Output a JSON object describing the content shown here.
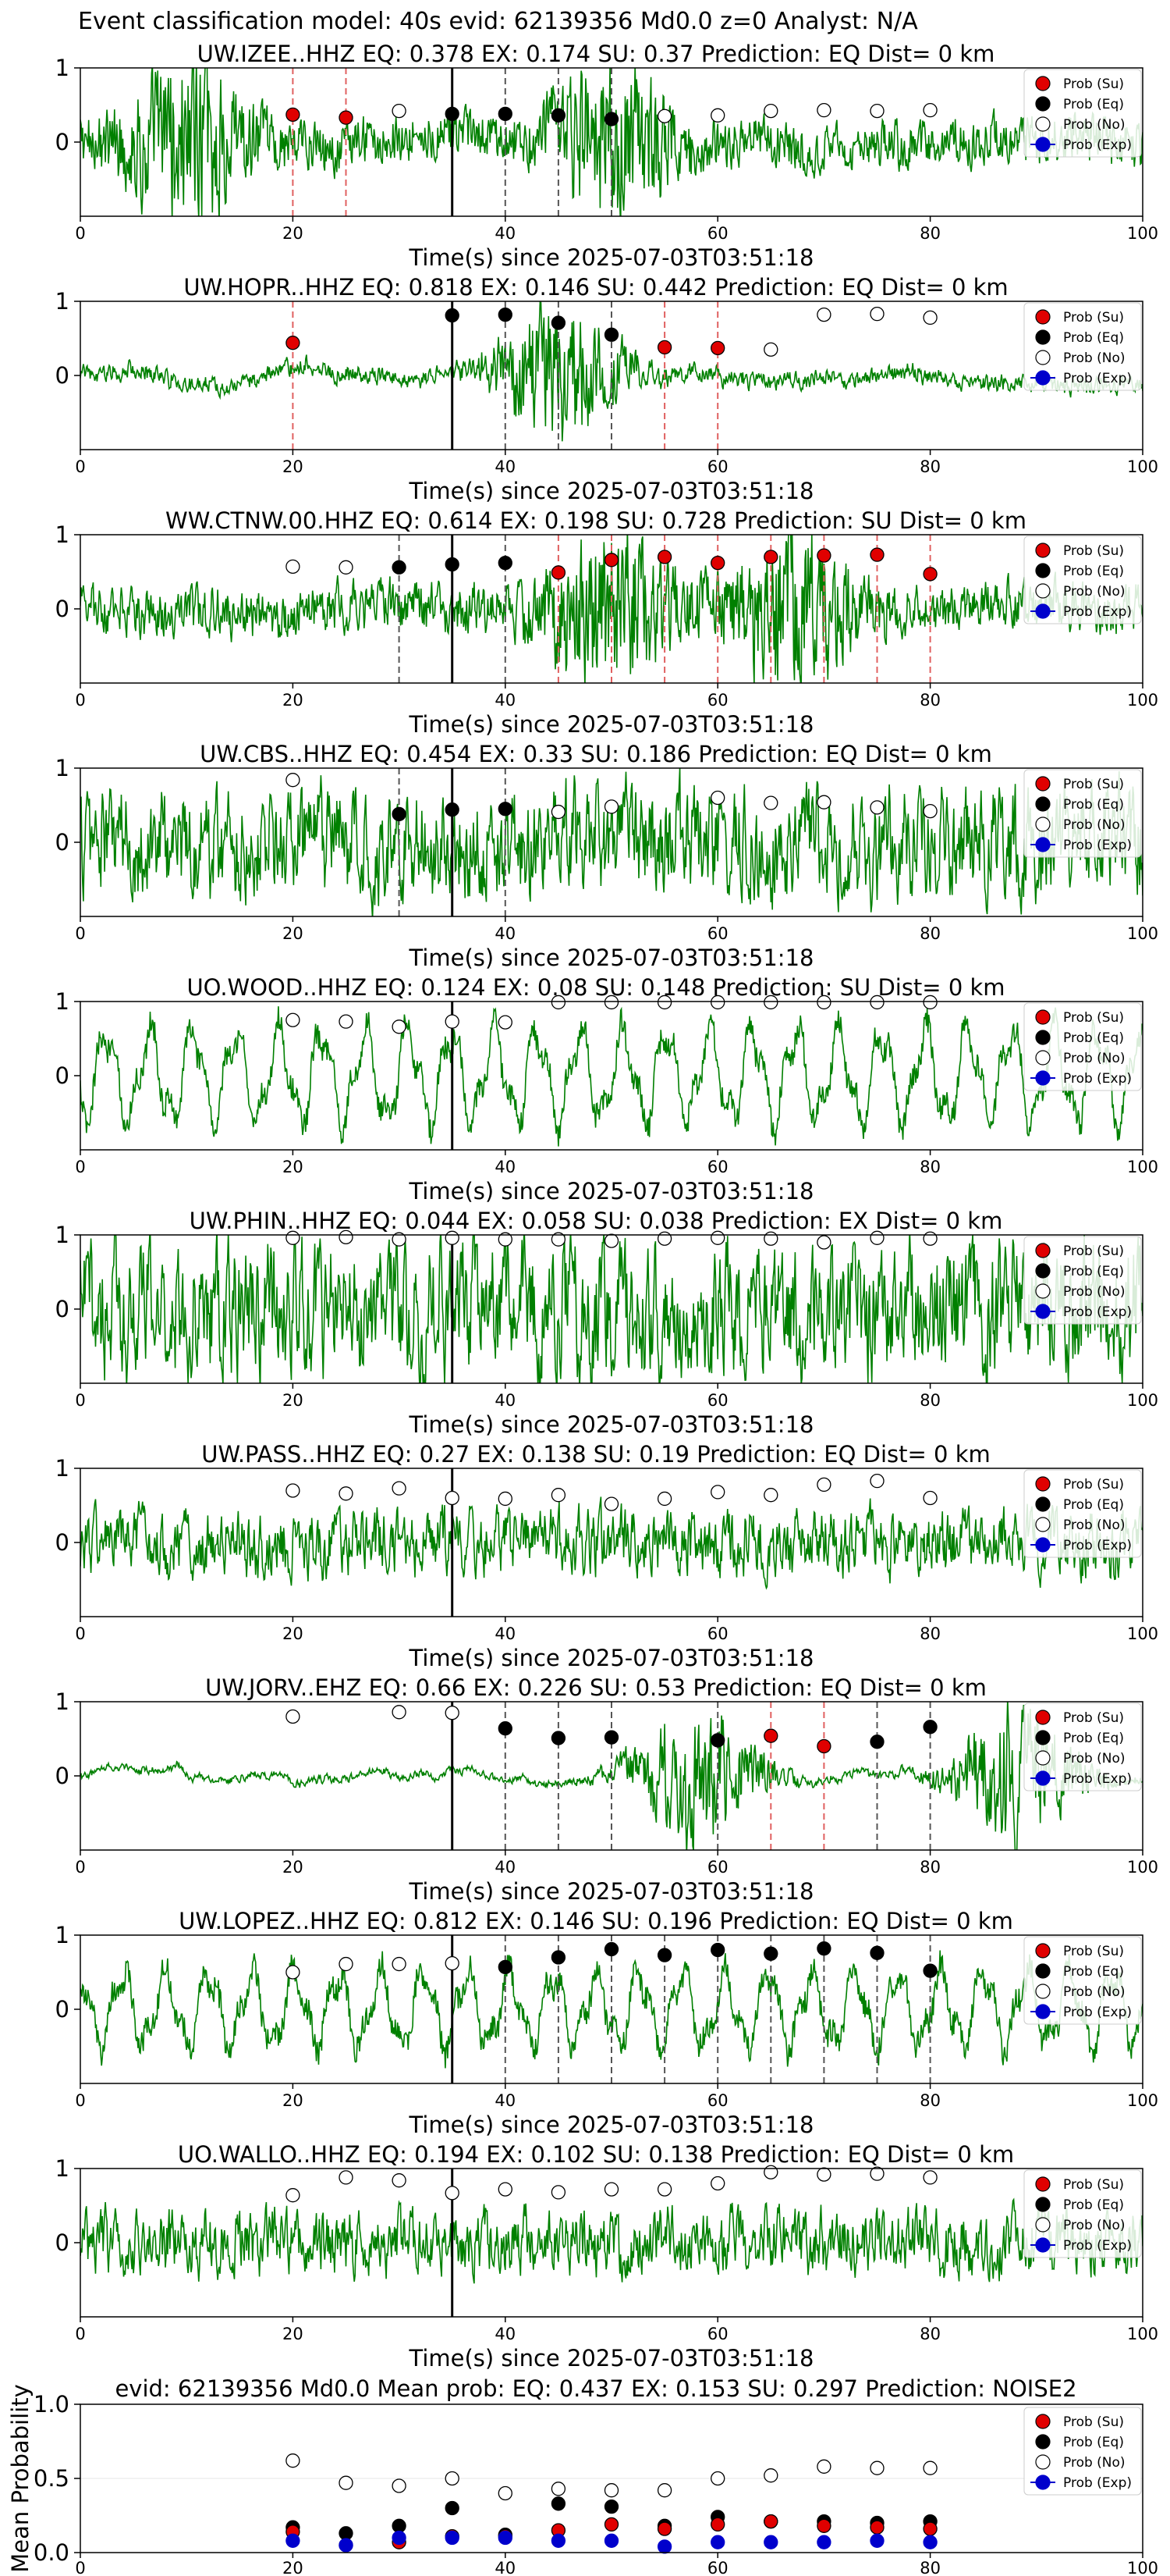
{
  "header": {
    "title": "Event classification model: 40s evid: 62139356 Md0.0 z=0 Analyst: N/A"
  },
  "common": {
    "xlabel": "Time(s) since 2025-07-03T03:51:18",
    "x_ticks": [
      0,
      20,
      40,
      60,
      80,
      100
    ],
    "y_ticks": [
      0,
      1
    ],
    "x_range": [
      0,
      100
    ],
    "y_range": [
      -1,
      1
    ],
    "legend_labels": [
      "Prob (Su)",
      "Prob (Eq)",
      "Prob (No)",
      "Prob (Exp)"
    ],
    "colors": {
      "waveform": "#008000",
      "su": "#e00000",
      "eq": "#000000",
      "no": "#ffffff",
      "exp": "#0000cc",
      "su_line": "#e06060",
      "eq_line": "#555555",
      "marker_line": "#000000"
    }
  },
  "chart_data": [
    {
      "type": "line",
      "title": "UW.IZEE..HHZ   EQ: 0.378  EX: 0.174  SU: 0.37   Prediction: EQ    Dist= 0 km",
      "vline": 35,
      "waveform": {
        "style": "burst",
        "burst_centers": [
          10,
          50
        ],
        "amplitude": 0.35
      },
      "points": [
        {
          "t": 20,
          "p": 0.37,
          "cls": "su",
          "line": true
        },
        {
          "t": 25,
          "p": 0.33,
          "cls": "su",
          "line": true
        },
        {
          "t": 30,
          "p": 0.42,
          "cls": "no",
          "line": false
        },
        {
          "t": 35,
          "p": 0.38,
          "cls": "eq",
          "line": false
        },
        {
          "t": 40,
          "p": 0.38,
          "cls": "eq",
          "line": true
        },
        {
          "t": 45,
          "p": 0.36,
          "cls": "eq",
          "line": true
        },
        {
          "t": 50,
          "p": 0.31,
          "cls": "eq",
          "line": true
        },
        {
          "t": 55,
          "p": 0.35,
          "cls": "no",
          "line": false
        },
        {
          "t": 60,
          "p": 0.36,
          "cls": "no",
          "line": false
        },
        {
          "t": 65,
          "p": 0.42,
          "cls": "no",
          "line": false
        },
        {
          "t": 70,
          "p": 0.43,
          "cls": "no",
          "line": false
        },
        {
          "t": 75,
          "p": 0.42,
          "cls": "no",
          "line": false
        },
        {
          "t": 80,
          "p": 0.43,
          "cls": "no",
          "line": false
        }
      ]
    },
    {
      "type": "line",
      "title": "UW.HOPR..HHZ   EQ: 0.818  EX: 0.146  SU: 0.442   Prediction: EQ    Dist= 0 km",
      "vline": 35,
      "waveform": {
        "style": "burst",
        "burst_centers": [
          45
        ],
        "amplitude": 0.12
      },
      "points": [
        {
          "t": 20,
          "p": 0.44,
          "cls": "su",
          "line": true
        },
        {
          "t": 35,
          "p": 0.81,
          "cls": "eq",
          "line": false
        },
        {
          "t": 40,
          "p": 0.82,
          "cls": "eq",
          "line": true
        },
        {
          "t": 45,
          "p": 0.71,
          "cls": "eq",
          "line": true
        },
        {
          "t": 50,
          "p": 0.55,
          "cls": "eq",
          "line": true
        },
        {
          "t": 55,
          "p": 0.38,
          "cls": "su",
          "line": true
        },
        {
          "t": 60,
          "p": 0.37,
          "cls": "su",
          "line": true
        },
        {
          "t": 65,
          "p": 0.35,
          "cls": "no",
          "line": false
        },
        {
          "t": 70,
          "p": 0.82,
          "cls": "no",
          "line": false
        },
        {
          "t": 75,
          "p": 0.83,
          "cls": "no",
          "line": false
        },
        {
          "t": 80,
          "p": 0.78,
          "cls": "no",
          "line": false
        }
      ]
    },
    {
      "type": "line",
      "title": "WW.CTNW.00.HHZ   EQ: 0.614  EX: 0.198  SU: 0.728   Prediction: SU    Dist= 0 km",
      "vline": 35,
      "waveform": {
        "style": "burst",
        "burst_centers": [
          50,
          67
        ],
        "amplitude": 0.35
      },
      "points": [
        {
          "t": 20,
          "p": 0.57,
          "cls": "no",
          "line": false
        },
        {
          "t": 25,
          "p": 0.56,
          "cls": "no",
          "line": false
        },
        {
          "t": 30,
          "p": 0.56,
          "cls": "eq",
          "line": true
        },
        {
          "t": 35,
          "p": 0.6,
          "cls": "eq",
          "line": false
        },
        {
          "t": 40,
          "p": 0.62,
          "cls": "eq",
          "line": true
        },
        {
          "t": 45,
          "p": 0.49,
          "cls": "su",
          "line": true
        },
        {
          "t": 50,
          "p": 0.66,
          "cls": "su",
          "line": true
        },
        {
          "t": 55,
          "p": 0.7,
          "cls": "su",
          "line": true
        },
        {
          "t": 60,
          "p": 0.62,
          "cls": "su",
          "line": true
        },
        {
          "t": 65,
          "p": 0.7,
          "cls": "su",
          "line": true
        },
        {
          "t": 70,
          "p": 0.72,
          "cls": "su",
          "line": true
        },
        {
          "t": 75,
          "p": 0.73,
          "cls": "su",
          "line": true
        },
        {
          "t": 80,
          "p": 0.47,
          "cls": "su",
          "line": true
        }
      ]
    },
    {
      "type": "line",
      "title": "UW.CBS..HHZ   EQ: 0.454  EX: 0.33  SU: 0.186   Prediction: EQ    Dist= 0 km",
      "vline": 35,
      "waveform": {
        "style": "noise",
        "amplitude": 0.6
      },
      "points": [
        {
          "t": 20,
          "p": 0.84,
          "cls": "no",
          "line": false
        },
        {
          "t": 30,
          "p": 0.38,
          "cls": "eq",
          "line": true
        },
        {
          "t": 35,
          "p": 0.44,
          "cls": "eq",
          "line": false
        },
        {
          "t": 40,
          "p": 0.45,
          "cls": "eq",
          "line": true
        },
        {
          "t": 45,
          "p": 0.41,
          "cls": "no",
          "line": false
        },
        {
          "t": 50,
          "p": 0.48,
          "cls": "no",
          "line": false
        },
        {
          "t": 60,
          "p": 0.6,
          "cls": "no",
          "line": false
        },
        {
          "t": 65,
          "p": 0.53,
          "cls": "no",
          "line": false
        },
        {
          "t": 70,
          "p": 0.54,
          "cls": "no",
          "line": false
        },
        {
          "t": 75,
          "p": 0.47,
          "cls": "no",
          "line": false
        },
        {
          "t": 80,
          "p": 0.42,
          "cls": "no",
          "line": false
        }
      ]
    },
    {
      "type": "line",
      "title": "UO.WOOD..HHZ   EQ: 0.124  EX: 0.08  SU: 0.148   Prediction: SU    Dist= 0 km",
      "vline": 35,
      "waveform": {
        "style": "wave",
        "amplitude": 0.75
      },
      "points": [
        {
          "t": 20,
          "p": 0.75,
          "cls": "no",
          "line": false
        },
        {
          "t": 25,
          "p": 0.73,
          "cls": "no",
          "line": false
        },
        {
          "t": 30,
          "p": 0.66,
          "cls": "no",
          "line": false
        },
        {
          "t": 35,
          "p": 0.73,
          "cls": "no",
          "line": false
        },
        {
          "t": 40,
          "p": 0.72,
          "cls": "no",
          "line": false
        },
        {
          "t": 45,
          "p": 0.99,
          "cls": "no",
          "line": false
        },
        {
          "t": 50,
          "p": 0.99,
          "cls": "no",
          "line": false
        },
        {
          "t": 55,
          "p": 0.99,
          "cls": "no",
          "line": false
        },
        {
          "t": 60,
          "p": 0.99,
          "cls": "no",
          "line": false
        },
        {
          "t": 65,
          "p": 0.99,
          "cls": "no",
          "line": false
        },
        {
          "t": 70,
          "p": 0.99,
          "cls": "no",
          "line": false
        },
        {
          "t": 75,
          "p": 0.99,
          "cls": "no",
          "line": false
        },
        {
          "t": 80,
          "p": 0.99,
          "cls": "no",
          "line": false
        }
      ]
    },
    {
      "type": "line",
      "title": "UW.PHIN..HHZ   EQ: 0.044  EX: 0.058  SU: 0.038   Prediction: EX    Dist= 0 km",
      "vline": 35,
      "waveform": {
        "style": "noise",
        "amplitude": 0.7
      },
      "points": [
        {
          "t": 20,
          "p": 0.96,
          "cls": "no",
          "line": false
        },
        {
          "t": 25,
          "p": 0.97,
          "cls": "no",
          "line": false
        },
        {
          "t": 30,
          "p": 0.94,
          "cls": "no",
          "line": false
        },
        {
          "t": 35,
          "p": 0.96,
          "cls": "no",
          "line": false
        },
        {
          "t": 40,
          "p": 0.94,
          "cls": "no",
          "line": false
        },
        {
          "t": 45,
          "p": 0.94,
          "cls": "no",
          "line": false
        },
        {
          "t": 50,
          "p": 0.92,
          "cls": "no",
          "line": false
        },
        {
          "t": 55,
          "p": 0.95,
          "cls": "no",
          "line": false
        },
        {
          "t": 60,
          "p": 0.96,
          "cls": "no",
          "line": false
        },
        {
          "t": 65,
          "p": 0.95,
          "cls": "no",
          "line": false
        },
        {
          "t": 70,
          "p": 0.9,
          "cls": "no",
          "line": false
        },
        {
          "t": 75,
          "p": 0.96,
          "cls": "no",
          "line": false
        },
        {
          "t": 80,
          "p": 0.95,
          "cls": "no",
          "line": false
        }
      ]
    },
    {
      "type": "line",
      "title": "UW.PASS..HHZ   EQ: 0.27  EX: 0.138  SU: 0.19   Prediction: EQ    Dist= 0 km",
      "vline": 35,
      "waveform": {
        "style": "noise",
        "amplitude": 0.35
      },
      "points": [
        {
          "t": 20,
          "p": 0.7,
          "cls": "no",
          "line": false
        },
        {
          "t": 25,
          "p": 0.66,
          "cls": "no",
          "line": false
        },
        {
          "t": 30,
          "p": 0.73,
          "cls": "no",
          "line": false
        },
        {
          "t": 35,
          "p": 0.6,
          "cls": "no",
          "line": false
        },
        {
          "t": 40,
          "p": 0.59,
          "cls": "no",
          "line": false
        },
        {
          "t": 45,
          "p": 0.64,
          "cls": "no",
          "line": false
        },
        {
          "t": 50,
          "p": 0.52,
          "cls": "no",
          "line": false
        },
        {
          "t": 55,
          "p": 0.59,
          "cls": "no",
          "line": false
        },
        {
          "t": 60,
          "p": 0.68,
          "cls": "no",
          "line": false
        },
        {
          "t": 65,
          "p": 0.64,
          "cls": "no",
          "line": false
        },
        {
          "t": 70,
          "p": 0.78,
          "cls": "no",
          "line": false
        },
        {
          "t": 75,
          "p": 0.83,
          "cls": "no",
          "line": false
        },
        {
          "t": 80,
          "p": 0.6,
          "cls": "no",
          "line": false
        }
      ]
    },
    {
      "type": "line",
      "title": "UW.JORV..EHZ   EQ: 0.66  EX: 0.226  SU: 0.53   Prediction: EQ    Dist= 0 km",
      "vline": 35,
      "waveform": {
        "style": "burst",
        "burst_centers": [
          58,
          88
        ],
        "amplitude": 0.05
      },
      "points": [
        {
          "t": 20,
          "p": 0.8,
          "cls": "no",
          "line": false
        },
        {
          "t": 30,
          "p": 0.86,
          "cls": "no",
          "line": false
        },
        {
          "t": 35,
          "p": 0.85,
          "cls": "no",
          "line": false
        },
        {
          "t": 40,
          "p": 0.64,
          "cls": "eq",
          "line": true
        },
        {
          "t": 45,
          "p": 0.51,
          "cls": "eq",
          "line": true
        },
        {
          "t": 50,
          "p": 0.52,
          "cls": "eq",
          "line": true
        },
        {
          "t": 60,
          "p": 0.48,
          "cls": "eq",
          "line": true
        },
        {
          "t": 65,
          "p": 0.54,
          "cls": "su",
          "line": true
        },
        {
          "t": 70,
          "p": 0.4,
          "cls": "su",
          "line": true
        },
        {
          "t": 75,
          "p": 0.46,
          "cls": "eq",
          "line": true
        },
        {
          "t": 80,
          "p": 0.66,
          "cls": "eq",
          "line": true
        }
      ]
    },
    {
      "type": "line",
      "title": "UW.LOPEZ..HHZ   EQ: 0.812  EX: 0.146  SU: 0.196   Prediction: EQ    Dist= 0 km",
      "vline": 35,
      "waveform": {
        "style": "wave",
        "amplitude": 0.6
      },
      "points": [
        {
          "t": 20,
          "p": 0.5,
          "cls": "no",
          "line": false
        },
        {
          "t": 25,
          "p": 0.61,
          "cls": "no",
          "line": false
        },
        {
          "t": 30,
          "p": 0.61,
          "cls": "no",
          "line": false
        },
        {
          "t": 35,
          "p": 0.62,
          "cls": "no",
          "line": false
        },
        {
          "t": 40,
          "p": 0.57,
          "cls": "eq",
          "line": true
        },
        {
          "t": 45,
          "p": 0.7,
          "cls": "eq",
          "line": true
        },
        {
          "t": 50,
          "p": 0.81,
          "cls": "eq",
          "line": true
        },
        {
          "t": 55,
          "p": 0.73,
          "cls": "eq",
          "line": true
        },
        {
          "t": 60,
          "p": 0.8,
          "cls": "eq",
          "line": true
        },
        {
          "t": 65,
          "p": 0.75,
          "cls": "eq",
          "line": true
        },
        {
          "t": 70,
          "p": 0.82,
          "cls": "eq",
          "line": true
        },
        {
          "t": 75,
          "p": 0.76,
          "cls": "eq",
          "line": true
        },
        {
          "t": 80,
          "p": 0.52,
          "cls": "eq",
          "line": true
        }
      ]
    },
    {
      "type": "line",
      "title": "UO.WALLO..HHZ   EQ: 0.194  EX: 0.102  SU: 0.138   Prediction: EQ    Dist= 0 km",
      "vline": 35,
      "waveform": {
        "style": "noise",
        "amplitude": 0.35
      },
      "points": [
        {
          "t": 20,
          "p": 0.64,
          "cls": "no",
          "line": false
        },
        {
          "t": 25,
          "p": 0.88,
          "cls": "no",
          "line": false
        },
        {
          "t": 30,
          "p": 0.84,
          "cls": "no",
          "line": false
        },
        {
          "t": 35,
          "p": 0.67,
          "cls": "no",
          "line": false
        },
        {
          "t": 40,
          "p": 0.72,
          "cls": "no",
          "line": false
        },
        {
          "t": 45,
          "p": 0.68,
          "cls": "no",
          "line": false
        },
        {
          "t": 50,
          "p": 0.72,
          "cls": "no",
          "line": false
        },
        {
          "t": 55,
          "p": 0.72,
          "cls": "no",
          "line": false
        },
        {
          "t": 60,
          "p": 0.8,
          "cls": "no",
          "line": false
        },
        {
          "t": 65,
          "p": 0.95,
          "cls": "no",
          "line": false
        },
        {
          "t": 70,
          "p": 0.92,
          "cls": "no",
          "line": false
        },
        {
          "t": 75,
          "p": 0.93,
          "cls": "no",
          "line": false
        },
        {
          "t": 80,
          "p": 0.88,
          "cls": "no",
          "line": false
        }
      ]
    },
    {
      "type": "scatter",
      "title": "evid: 62139356  Md0.0   Mean prob:   EQ: 0.437  EX: 0.153  SU: 0.297   Prediction: NOISE2",
      "ylabel": "Mean Probability",
      "ylim": [
        0,
        1
      ],
      "y_ticks": [
        0.0,
        0.5,
        1.0
      ],
      "x": [
        20,
        25,
        30,
        35,
        40,
        45,
        50,
        55,
        60,
        65,
        70,
        75,
        80
      ],
      "series": [
        {
          "cls": "no",
          "values": [
            0.62,
            0.47,
            0.45,
            0.5,
            0.4,
            0.43,
            0.42,
            0.42,
            0.5,
            0.52,
            0.58,
            0.57,
            0.57
          ]
        },
        {
          "cls": "eq",
          "values": [
            0.17,
            0.13,
            0.18,
            0.3,
            0.12,
            0.33,
            0.31,
            0.18,
            0.24,
            0.21,
            0.21,
            0.2,
            0.21
          ]
        },
        {
          "cls": "su",
          "values": [
            0.14,
            0.05,
            0.07,
            0.11,
            0.11,
            0.15,
            0.19,
            0.16,
            0.19,
            0.21,
            0.18,
            0.17,
            0.16
          ]
        },
        {
          "cls": "exp",
          "values": [
            0.08,
            0.05,
            0.1,
            0.1,
            0.1,
            0.08,
            0.08,
            0.04,
            0.07,
            0.07,
            0.07,
            0.08,
            0.07
          ]
        }
      ]
    }
  ]
}
